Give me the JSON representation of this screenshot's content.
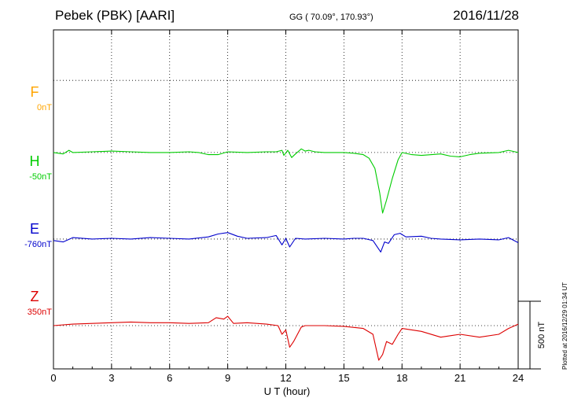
{
  "header": {
    "station": "Pebek (PBK)  [AARI]",
    "coords": "GG ( 70.09°, 170.93°)",
    "date": "2016/11/28"
  },
  "channels": [
    {
      "name": "F",
      "baseline": "0nT",
      "color": "#ffa500"
    },
    {
      "name": "H",
      "baseline": "-50nT",
      "color": "#00cc00"
    },
    {
      "name": "E",
      "baseline": "-760nT",
      "color": "#0000cc"
    },
    {
      "name": "Z",
      "baseline": "350nT",
      "color": "#dd0000"
    }
  ],
  "scale_bar": "500 nT",
  "xlabel": "U T (hour)",
  "plotted": "Plotted at 2016/12/29 01:34 UT",
  "chart_data": {
    "type": "line",
    "xlim": [
      0,
      24
    ],
    "xticks": [
      "0",
      "3",
      "6",
      "9",
      "12",
      "15",
      "18",
      "21",
      "24"
    ],
    "ylim_nT": [
      -2000,
      350
    ],
    "grid": true,
    "scale_bar_nT": 500,
    "series": [
      {
        "name": "H",
        "color": "#00cc00",
        "offset_nT": -500,
        "x": [
          0,
          0.5,
          0.8,
          1,
          2,
          3,
          4,
          5,
          6,
          7,
          7.5,
          8,
          8.5,
          9,
          10,
          11,
          11.5,
          11.8,
          11.9,
          12.1,
          12.3,
          12.5,
          12.8,
          13,
          13.2,
          13.5,
          14,
          15,
          15.5,
          16,
          16.3,
          16.6,
          16.85,
          17,
          17.2,
          17.5,
          17.8,
          18,
          18.5,
          19,
          20,
          20.5,
          21,
          21.5,
          22,
          23,
          23.5,
          24
        ],
        "y": [
          0,
          -10,
          15,
          0,
          5,
          10,
          5,
          0,
          0,
          5,
          0,
          -15,
          -15,
          5,
          0,
          5,
          5,
          15,
          -20,
          15,
          -35,
          -10,
          25,
          10,
          15,
          5,
          0,
          0,
          -5,
          -15,
          -40,
          -110,
          -280,
          -420,
          -330,
          -180,
          -50,
          0,
          -15,
          -20,
          -10,
          -25,
          -30,
          -15,
          -5,
          0,
          15,
          0
        ]
      },
      {
        "name": "E",
        "color": "#0000cc",
        "offset_nT": -1100,
        "x": [
          0,
          0.5,
          1,
          2,
          3,
          4,
          5,
          6,
          7,
          8,
          8.5,
          9,
          9.5,
          10,
          11,
          11.5,
          11.8,
          12,
          12.2,
          12.5,
          13,
          14,
          15,
          15.5,
          16,
          16.5,
          16.9,
          17.1,
          17.3,
          17.6,
          17.9,
          18.2,
          19,
          19.5,
          20,
          21,
          22,
          23,
          23.5,
          24
        ],
        "y": [
          -10,
          -20,
          10,
          0,
          5,
          0,
          10,
          5,
          0,
          15,
          35,
          45,
          20,
          5,
          10,
          25,
          -40,
          5,
          -55,
          5,
          0,
          5,
          0,
          5,
          5,
          -10,
          -90,
          -20,
          -30,
          30,
          40,
          15,
          20,
          5,
          0,
          -5,
          0,
          -5,
          10,
          -25
        ]
      },
      {
        "name": "Z",
        "color": "#dd0000",
        "offset_nT": -1700,
        "x": [
          0,
          1,
          2,
          3,
          4,
          5,
          6,
          7,
          8,
          8.4,
          8.8,
          9,
          9.3,
          10,
          11,
          11.6,
          11.8,
          12,
          12.2,
          12.4,
          12.8,
          13,
          14,
          15,
          16,
          16.5,
          16.8,
          17,
          17.2,
          17.5,
          17.8,
          18,
          19,
          20,
          20.5,
          21,
          22,
          23,
          23.5,
          24
        ],
        "y": [
          0,
          10,
          15,
          20,
          25,
          20,
          20,
          15,
          20,
          55,
          45,
          65,
          15,
          20,
          10,
          0,
          -60,
          -30,
          -150,
          -110,
          -10,
          0,
          0,
          -5,
          -20,
          -60,
          -240,
          -200,
          -110,
          -130,
          -60,
          -20,
          -40,
          -80,
          -70,
          -60,
          -80,
          -60,
          -20,
          10
        ]
      }
    ]
  }
}
